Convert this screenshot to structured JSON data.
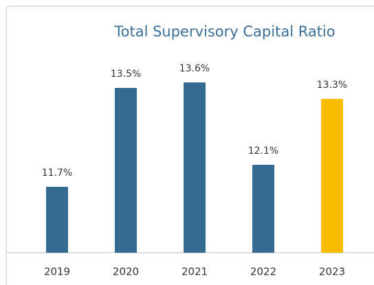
{
  "chart_data": {
    "type": "bar",
    "title": "Total Supervisory Capital Ratio",
    "categories": [
      "2019",
      "2020",
      "2021",
      "2022",
      "2023"
    ],
    "values": [
      11.7,
      13.5,
      13.6,
      12.1,
      13.3
    ],
    "value_labels": [
      "11.7%",
      "13.5%",
      "13.6%",
      "12.1%",
      "13.3%"
    ],
    "colors": [
      "#356a91",
      "#356a91",
      "#356a91",
      "#356a91",
      "#f7bb00"
    ],
    "ylim": [
      10.5,
      14.1
    ]
  }
}
